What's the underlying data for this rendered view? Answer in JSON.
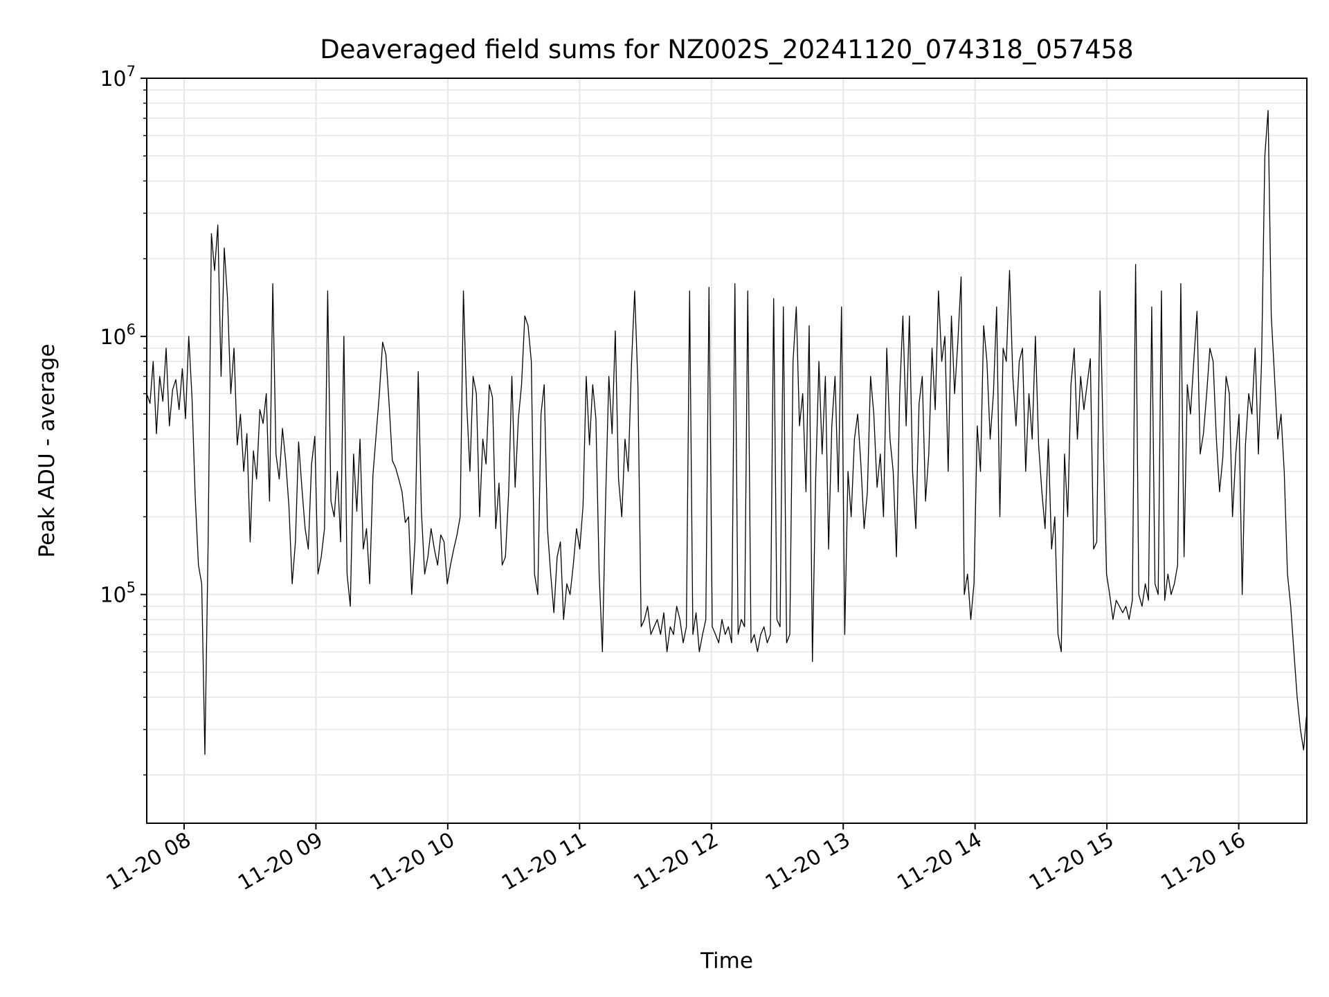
{
  "chart_data": {
    "type": "line",
    "title": "Deaveraged field sums for NZ002S_20241120_074318_057458",
    "xlabel": "Time",
    "ylabel": "Peak ADU - average",
    "yscale": "log",
    "grid": true,
    "line_color": "#000000",
    "grid_color": "#e6e6e6",
    "xlim": [
      "2024-11-20 07:43",
      "2024-11-20 16:31"
    ],
    "ylim": [
      13000,
      10000000
    ],
    "x_ticks": [
      "11-20 08",
      "11-20 09",
      "11-20 10",
      "11-20 11",
      "11-20 12",
      "11-20 13",
      "11-20 14",
      "11-20 15",
      "11-20 16"
    ],
    "y_ticks": [
      {
        "base": "10",
        "exp": "5",
        "value": 100000
      },
      {
        "base": "10",
        "exp": "6",
        "value": 1000000
      },
      {
        "base": "10",
        "exp": "7",
        "value": 10000000
      }
    ],
    "series": [
      {
        "x_start": "2024-11-20 07:43",
        "x_end": "2024-11-20 16:31",
        "values": [
          600000,
          550000,
          800000,
          420000,
          700000,
          560000,
          900000,
          450000,
          620000,
          680000,
          520000,
          750000,
          480000,
          1000000,
          580000,
          240000,
          130000,
          110000,
          24000,
          160000,
          2500000,
          1800000,
          2700000,
          700000,
          2200000,
          1400000,
          600000,
          900000,
          380000,
          500000,
          300000,
          420000,
          160000,
          360000,
          280000,
          520000,
          460000,
          600000,
          230000,
          1600000,
          350000,
          280000,
          440000,
          330000,
          220000,
          110000,
          160000,
          390000,
          260000,
          180000,
          150000,
          320000,
          410000,
          120000,
          140000,
          180000,
          1500000,
          230000,
          200000,
          300000,
          160000,
          1000000,
          120000,
          90000,
          350000,
          210000,
          400000,
          150000,
          180000,
          110000,
          290000,
          420000,
          600000,
          950000,
          850000,
          550000,
          330000,
          310000,
          280000,
          250000,
          190000,
          200000,
          100000,
          160000,
          730000,
          210000,
          120000,
          140000,
          180000,
          150000,
          130000,
          170000,
          160000,
          110000,
          130000,
          150000,
          170000,
          200000,
          1500000,
          550000,
          300000,
          700000,
          600000,
          200000,
          400000,
          320000,
          650000,
          580000,
          180000,
          270000,
          130000,
          140000,
          250000,
          700000,
          260000,
          480000,
          650000,
          1200000,
          1100000,
          800000,
          120000,
          100000,
          500000,
          650000,
          180000,
          120000,
          85000,
          140000,
          160000,
          80000,
          110000,
          100000,
          130000,
          180000,
          150000,
          220000,
          700000,
          380000,
          650000,
          480000,
          120000,
          60000,
          230000,
          700000,
          420000,
          1050000,
          280000,
          200000,
          400000,
          300000,
          780000,
          1500000,
          650000,
          75000,
          80000,
          90000,
          70000,
          75000,
          80000,
          70000,
          85000,
          60000,
          75000,
          70000,
          90000,
          80000,
          65000,
          75000,
          1500000,
          70000,
          85000,
          60000,
          70000,
          80000,
          1550000,
          75000,
          70000,
          65000,
          80000,
          70000,
          75000,
          65000,
          1600000,
          70000,
          80000,
          75000,
          1500000,
          65000,
          70000,
          60000,
          70000,
          75000,
          65000,
          70000,
          1400000,
          80000,
          75000,
          1300000,
          65000,
          70000,
          800000,
          1300000,
          450000,
          600000,
          250000,
          1100000,
          55000,
          280000,
          800000,
          350000,
          700000,
          150000,
          450000,
          700000,
          250000,
          1300000,
          70000,
          300000,
          200000,
          400000,
          500000,
          320000,
          180000,
          250000,
          700000,
          500000,
          260000,
          350000,
          200000,
          900000,
          400000,
          300000,
          140000,
          600000,
          1200000,
          450000,
          1200000,
          300000,
          180000,
          550000,
          700000,
          230000,
          350000,
          900000,
          520000,
          1500000,
          800000,
          1000000,
          300000,
          1200000,
          600000,
          950000,
          1700000,
          100000,
          120000,
          80000,
          110000,
          450000,
          300000,
          1100000,
          800000,
          400000,
          600000,
          1300000,
          200000,
          900000,
          800000,
          1800000,
          700000,
          450000,
          800000,
          900000,
          300000,
          600000,
          400000,
          1000000,
          380000,
          250000,
          180000,
          400000,
          150000,
          200000,
          70000,
          60000,
          350000,
          200000,
          650000,
          900000,
          400000,
          700000,
          520000,
          650000,
          820000,
          150000,
          160000,
          1500000,
          380000,
          120000,
          100000,
          80000,
          95000,
          90000,
          85000,
          90000,
          80000,
          95000,
          1900000,
          100000,
          90000,
          110000,
          95000,
          1300000,
          110000,
          100000,
          1500000,
          95000,
          120000,
          100000,
          110000,
          130000,
          1600000,
          140000,
          650000,
          500000,
          800000,
          1250000,
          350000,
          420000,
          600000,
          900000,
          800000,
          400000,
          250000,
          340000,
          700000,
          600000,
          200000,
          350000,
          500000,
          100000,
          380000,
          600000,
          500000,
          900000,
          350000,
          800000,
          5000000,
          7500000,
          1200000,
          700000,
          400000,
          500000,
          300000,
          120000,
          90000,
          60000,
          40000,
          30000,
          25000,
          35000
        ]
      }
    ]
  }
}
